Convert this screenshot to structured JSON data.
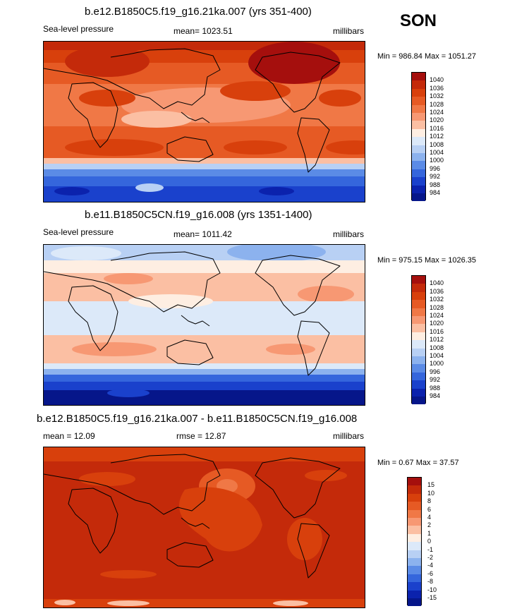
{
  "season": "SON",
  "panels": [
    {
      "title": "b.e12.B1850C5.f19_g16.21ka.007 (yrs 351-400)",
      "left_label": "Sea-level pressure",
      "center_label": "mean= 1023.51",
      "right_label": "millibars",
      "minmax": "Min = 986.84 Max = 1051.27",
      "colorbar_labels": [
        "1040",
        "1036",
        "1032",
        "1028",
        "1024",
        "1020",
        "1016",
        "1012",
        "1008",
        "1004",
        "1000",
        "996",
        "992",
        "988",
        "984"
      ],
      "colorbar_colors": [
        "#a50f0d",
        "#c42a0a",
        "#d8400c",
        "#e65a24",
        "#f07846",
        "#f79873",
        "#fbbfa3",
        "#feeee2",
        "#dce9f9",
        "#b8d0f4",
        "#8cb2ee",
        "#5b8be6",
        "#3566dc",
        "#1a41cc",
        "#0b22ad",
        "#06168a"
      ]
    },
    {
      "title": "b.e11.B1850C5CN.f19_g16.008 (yrs 1351-1400)",
      "left_label": "Sea-level pressure",
      "center_label": "mean= 1011.42",
      "right_label": "millibars",
      "minmax": "Min = 975.15 Max = 1026.35",
      "colorbar_labels": [
        "1040",
        "1036",
        "1032",
        "1028",
        "1024",
        "1020",
        "1016",
        "1012",
        "1008",
        "1004",
        "1000",
        "996",
        "992",
        "988",
        "984"
      ],
      "colorbar_colors": [
        "#a50f0d",
        "#c42a0a",
        "#d8400c",
        "#e65a24",
        "#f07846",
        "#f79873",
        "#fbbfa3",
        "#feeee2",
        "#dce9f9",
        "#b8d0f4",
        "#8cb2ee",
        "#5b8be6",
        "#3566dc",
        "#1a41cc",
        "#0b22ad",
        "#06168a"
      ]
    },
    {
      "title": "b.e12.B1850C5.f19_g16.21ka.007 - b.e11.B1850C5CN.f19_g16.008",
      "left_label": "mean =  12.09",
      "center_label": "rmse =  12.87",
      "right_label": "millibars",
      "minmax": "Min =  0.67 Max =  37.57",
      "colorbar_labels": [
        "15",
        "10",
        "8",
        "6",
        "4",
        "2",
        "1",
        "0",
        "-1",
        "-2",
        "-4",
        "-6",
        "-8",
        "-10",
        "-15"
      ],
      "colorbar_colors": [
        "#a50f0d",
        "#c42a0a",
        "#d8400c",
        "#e65a24",
        "#f07846",
        "#f79873",
        "#fbbfa3",
        "#feeee2",
        "#dce9f9",
        "#b8d0f4",
        "#8cb2ee",
        "#5b8be6",
        "#3566dc",
        "#1a41cc",
        "#0b22ad",
        "#06168a"
      ]
    }
  ]
}
